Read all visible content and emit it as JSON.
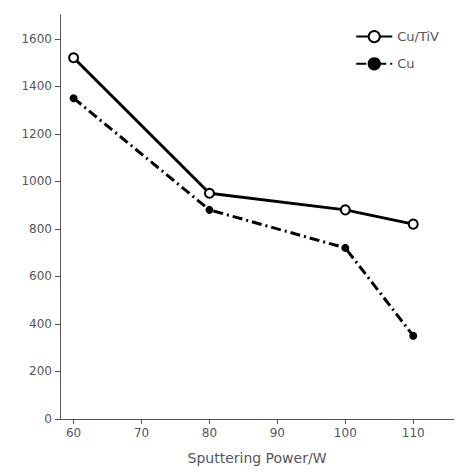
{
  "chart_data": {
    "type": "line",
    "xlabel": "Sputtering Power/W",
    "x": [
      60,
      80,
      100,
      110
    ],
    "xlim": [
      58,
      116
    ],
    "xticks": [
      60,
      70,
      80,
      90,
      100,
      110
    ],
    "ylim": [
      0,
      1700
    ],
    "yticks": [
      0,
      200,
      400,
      600,
      800,
      1000,
      1200,
      1400,
      1600
    ],
    "grid": false,
    "legend": "upper right",
    "series": [
      {
        "name": "Cu/TiV",
        "color": "#000000",
        "marker": "hollow_circle",
        "line_style": "solid",
        "values": [
          1520,
          950,
          880,
          820
        ]
      },
      {
        "name": "Cu",
        "color": "#000000",
        "marker": "dot",
        "line_style": "dashdot",
        "values": [
          1350,
          880,
          720,
          350
        ]
      }
    ]
  }
}
